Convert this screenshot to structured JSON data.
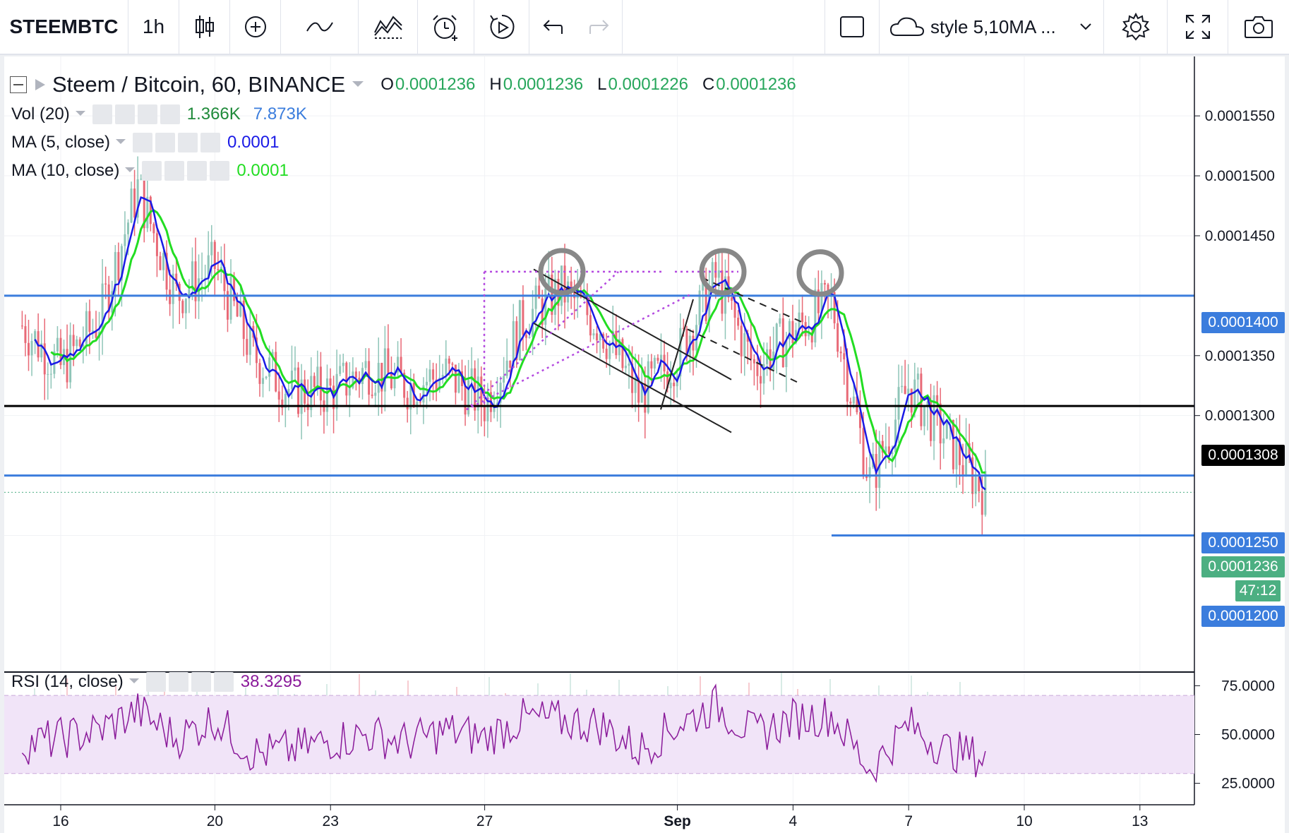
{
  "toolbar": {
    "symbol": "STEEMBTC",
    "interval": "1h",
    "style_label": "style 5,10MA ...",
    "icons": [
      "candle-style-icon",
      "add-indicator-icon",
      "compare-icon",
      "indicators-icon",
      "alert-icon",
      "replay-icon",
      "undo-icon",
      "redo-icon",
      "fullscreen-box-icon",
      "cloud-icon",
      "chevron-down-icon",
      "gear-icon",
      "expand-icon",
      "camera-icon"
    ]
  },
  "legend": {
    "title": "Steem / Bitcoin, 60, BINANCE",
    "o_label": "O",
    "o_value": "0.0001236",
    "h_label": "H",
    "h_value": "0.0001236",
    "l_label": "L",
    "l_value": "0.0001226",
    "c_label": "C",
    "c_value": "0.0001236",
    "vol_label": "Vol (20)",
    "vol_value1": "1.366K",
    "vol_value2": "7.873K",
    "ma5_label": "MA (5, close)",
    "ma5_value": "0.0001",
    "ma10_label": "MA (10, close)",
    "ma10_value": "0.0001",
    "rsi_label": "RSI (14, close)",
    "rsi_value": "38.3295"
  },
  "colors": {
    "up": "#8fc5b8",
    "down": "#e86a77",
    "ma5": "#1a1ae6",
    "ma10": "#22dd22",
    "hline_blue": "#3b7ddd",
    "hline_black": "#000000",
    "rsi": "#8a1a9a",
    "rsi_band": "#f1e4f8",
    "volume": "#7aaee0",
    "last_price": "#4caf82",
    "ohlc_value": "#26a65b"
  },
  "chart_data": [
    {
      "type": "candlestick",
      "title": "Steem / Bitcoin, 60, BINANCE",
      "xlabel": "",
      "ylabel": "",
      "x_ticks": [
        "16",
        "20",
        "23",
        "27",
        "Sep",
        "4",
        "7",
        "10",
        "13"
      ],
      "x_tick_dates": [
        "Aug 16",
        "Aug 20",
        "Aug 23",
        "Aug 27",
        "Sep 1",
        "Sep 4",
        "Sep 7",
        "Sep 10",
        "Sep 13"
      ],
      "y_ticks": [
        "0.0001550",
        "0.0001500",
        "0.0001450",
        "0.0001350",
        "0.0001300"
      ],
      "y_range": [
        0.0001152,
        0.0001576
      ],
      "horizontal_levels": [
        {
          "label": "0.0001400",
          "value": 0.00014,
          "color": "blue"
        },
        {
          "label": "0.0001308",
          "value": 0.0001308,
          "color": "black"
        },
        {
          "label": "0.0001250",
          "value": 0.000125,
          "color": "blue"
        },
        {
          "label": "0.0001200",
          "value": 0.00012,
          "color": "blue",
          "from": "Sep 5"
        }
      ],
      "last_price": {
        "label": "0.0001236",
        "value": 0.0001236,
        "countdown": "47:12"
      },
      "close_series": {
        "dates": [
          "Aug 15",
          "Aug 16",
          "Aug 17",
          "Aug 18",
          "Aug 19",
          "Aug 20",
          "Aug 21",
          "Aug 22",
          "Aug 23",
          "Aug 24",
          "Aug 25",
          "Aug 26",
          "Aug 27",
          "Aug 28",
          "Aug 29",
          "Aug 30",
          "Aug 31",
          "Sep 1",
          "Sep 2",
          "Sep 3",
          "Sep 4",
          "Sep 5",
          "Sep 6",
          "Sep 7",
          "Sep 8",
          "Sep 9"
        ],
        "values": [
          0.0001375,
          0.000134,
          0.000138,
          0.000149,
          0.00014,
          0.0001425,
          0.000135,
          0.000132,
          0.000132,
          0.000134,
          0.0001325,
          0.0001335,
          0.000131,
          0.000138,
          0.0001405,
          0.0001375,
          0.0001315,
          0.000135,
          0.0001415,
          0.000134,
          0.000137,
          0.0001395,
          0.0001245,
          0.0001325,
          0.000128,
          0.0001235
        ]
      },
      "series": [
        {
          "name": "MA (5, close)",
          "value": "0.0001"
        },
        {
          "name": "MA (10, close)",
          "value": "0.0001"
        }
      ],
      "annotations": [
        "three circles marking tops near 0.000142",
        "descending channel lines",
        "dotted purple projection lines"
      ]
    },
    {
      "type": "area",
      "title": "Vol (20)",
      "values_label": [
        "1.366K",
        "7.873K"
      ]
    },
    {
      "type": "line",
      "title": "RSI (14, close)",
      "current": 38.3295,
      "y_ticks": [
        "75.0000",
        "50.0000",
        "25.0000"
      ],
      "y_range": [
        14,
        82
      ],
      "band": [
        30,
        70
      ],
      "dates": [
        "Aug 15",
        "Aug 16",
        "Aug 17",
        "Aug 18",
        "Aug 19",
        "Aug 20",
        "Aug 21",
        "Aug 22",
        "Aug 23",
        "Aug 24",
        "Aug 25",
        "Aug 26",
        "Aug 27",
        "Aug 28",
        "Aug 29",
        "Aug 30",
        "Aug 31",
        "Sep 1",
        "Sep 2",
        "Sep 3",
        "Sep 4",
        "Sep 5",
        "Sep 6",
        "Sep 7",
        "Sep 8",
        "Sep 9"
      ],
      "values": [
        45,
        48,
        52,
        62,
        48,
        58,
        40,
        42,
        47,
        50,
        46,
        52,
        48,
        58,
        57,
        55,
        42,
        55,
        65,
        50,
        58,
        60,
        32,
        55,
        42,
        38
      ]
    }
  ]
}
